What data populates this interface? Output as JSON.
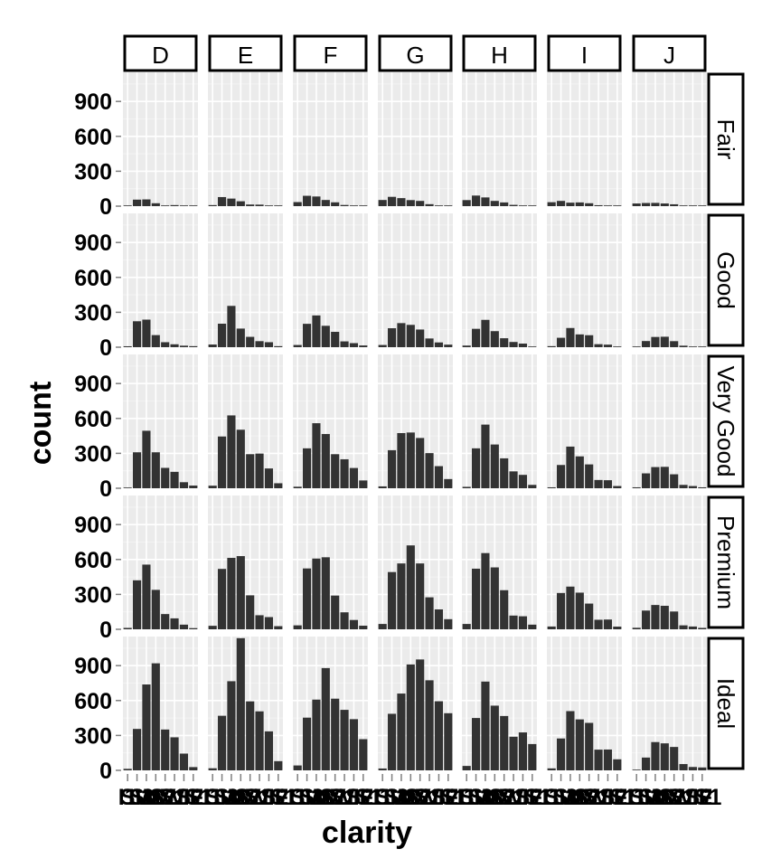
{
  "chart_data": {
    "type": "bar",
    "title": "",
    "xlabel": "clarity",
    "ylabel": "count",
    "ylim": [
      0,
      1150
    ],
    "y_ticks": [
      "0",
      "300",
      "600",
      "900"
    ],
    "y_tick_values": [
      0,
      300,
      600,
      900
    ],
    "x_tick_labels": [
      "I1",
      "SI2",
      "SI1",
      "VS2",
      "VS1",
      "VVS2",
      "VVS1",
      "IF"
    ],
    "categories": [
      "I1",
      "SI2",
      "SI1",
      "VS2",
      "VS1",
      "VVS2",
      "VVS1",
      "IF"
    ],
    "facet_columns": [
      "D",
      "E",
      "F",
      "G",
      "H",
      "I",
      "J"
    ],
    "facet_rows": [
      "Fair",
      "Good",
      "Very Good",
      "Premium",
      "Ideal"
    ],
    "grid": true,
    "colors": {
      "bar": "#333333",
      "panel_bg": "#ebebeb",
      "grid_line": "#ffffff",
      "strip_bg": "#ffffff",
      "strip_border": "#000000"
    },
    "panels": [
      {
        "row": "Fair",
        "col": "D",
        "values": [
          4,
          56,
          58,
          25,
          5,
          9,
          3,
          3
        ]
      },
      {
        "row": "Fair",
        "col": "E",
        "values": [
          9,
          78,
          65,
          42,
          14,
          13,
          3,
          0
        ]
      },
      {
        "row": "Fair",
        "col": "F",
        "values": [
          35,
          89,
          83,
          53,
          33,
          10,
          5,
          4
        ]
      },
      {
        "row": "Fair",
        "col": "G",
        "values": [
          53,
          80,
          69,
          52,
          45,
          17,
          3,
          2
        ]
      },
      {
        "row": "Fair",
        "col": "H",
        "values": [
          52,
          91,
          75,
          45,
          32,
          11,
          1,
          0
        ]
      },
      {
        "row": "Fair",
        "col": "I",
        "values": [
          34,
          45,
          30,
          32,
          25,
          8,
          1,
          0
        ]
      },
      {
        "row": "Fair",
        "col": "J",
        "values": [
          23,
          27,
          28,
          23,
          16,
          1,
          1,
          0
        ]
      },
      {
        "row": "Good",
        "col": "D",
        "values": [
          8,
          223,
          237,
          104,
          43,
          25,
          13,
          9
        ]
      },
      {
        "row": "Good",
        "col": "E",
        "values": [
          23,
          202,
          355,
          160,
          89,
          52,
          43,
          9
        ]
      },
      {
        "row": "Good",
        "col": "F",
        "values": [
          19,
          201,
          273,
          184,
          132,
          50,
          35,
          15
        ]
      },
      {
        "row": "Good",
        "col": "G",
        "values": [
          19,
          163,
          207,
          192,
          152,
          75,
          41,
          22
        ]
      },
      {
        "row": "Good",
        "col": "H",
        "values": [
          14,
          158,
          235,
          138,
          77,
          45,
          31,
          4
        ]
      },
      {
        "row": "Good",
        "col": "I",
        "values": [
          9,
          81,
          165,
          110,
          103,
          26,
          22,
          6
        ]
      },
      {
        "row": "Good",
        "col": "J",
        "values": [
          4,
          53,
          88,
          90,
          52,
          13,
          1,
          6
        ]
      },
      {
        "row": "Very Good",
        "col": "D",
        "values": [
          5,
          309,
          494,
          309,
          175,
          141,
          52,
          23
        ]
      },
      {
        "row": "Very Good",
        "col": "E",
        "values": [
          22,
          445,
          626,
          503,
          293,
          298,
          170,
          43
        ]
      },
      {
        "row": "Very Good",
        "col": "F",
        "values": [
          13,
          343,
          559,
          466,
          293,
          249,
          174,
          67
        ]
      },
      {
        "row": "Very Good",
        "col": "G",
        "values": [
          16,
          327,
          474,
          479,
          432,
          302,
          190,
          79
        ]
      },
      {
        "row": "Very Good",
        "col": "H",
        "values": [
          12,
          343,
          547,
          376,
          257,
          145,
          115,
          29
        ]
      },
      {
        "row": "Very Good",
        "col": "I",
        "values": [
          8,
          200,
          358,
          274,
          205,
          71,
          69,
          19
        ]
      },
      {
        "row": "Very Good",
        "col": "J",
        "values": [
          8,
          128,
          182,
          184,
          120,
          29,
          19,
          8
        ]
      },
      {
        "row": "Premium",
        "col": "D",
        "values": [
          12,
          421,
          556,
          339,
          131,
          94,
          40,
          10
        ]
      },
      {
        "row": "Premium",
        "col": "E",
        "values": [
          30,
          519,
          614,
          629,
          292,
          121,
          105,
          27
        ]
      },
      {
        "row": "Premium",
        "col": "F",
        "values": [
          34,
          523,
          608,
          619,
          290,
          146,
          80,
          31
        ]
      },
      {
        "row": "Premium",
        "col": "G",
        "values": [
          46,
          492,
          566,
          721,
          566,
          275,
          171,
          87
        ]
      },
      {
        "row": "Premium",
        "col": "H",
        "values": [
          46,
          521,
          655,
          532,
          336,
          118,
          112,
          40
        ]
      },
      {
        "row": "Premium",
        "col": "I",
        "values": [
          24,
          312,
          367,
          315,
          221,
          82,
          84,
          23
        ]
      },
      {
        "row": "Premium",
        "col": "J",
        "values": [
          13,
          161,
          209,
          202,
          153,
          34,
          24,
          12
        ]
      },
      {
        "row": "Ideal",
        "col": "D",
        "values": [
          13,
          356,
          738,
          920,
          351,
          284,
          144,
          28
        ]
      },
      {
        "row": "Ideal",
        "col": "E",
        "values": [
          18,
          469,
          766,
          1136,
          593,
          507,
          335,
          79
        ]
      },
      {
        "row": "Ideal",
        "col": "F",
        "values": [
          42,
          453,
          608,
          879,
          616,
          520,
          440,
          268
        ]
      },
      {
        "row": "Ideal",
        "col": "G",
        "values": [
          16,
          486,
          660,
          910,
          953,
          774,
          594,
          491
        ]
      },
      {
        "row": "Ideal",
        "col": "H",
        "values": [
          38,
          450,
          763,
          556,
          467,
          289,
          326,
          226
        ]
      },
      {
        "row": "Ideal",
        "col": "I",
        "values": [
          17,
          274,
          509,
          438,
          408,
          178,
          179,
          95
        ]
      },
      {
        "row": "Ideal",
        "col": "J",
        "values": [
          2,
          110,
          243,
          232,
          201,
          54,
          29,
          25
        ]
      }
    ]
  }
}
